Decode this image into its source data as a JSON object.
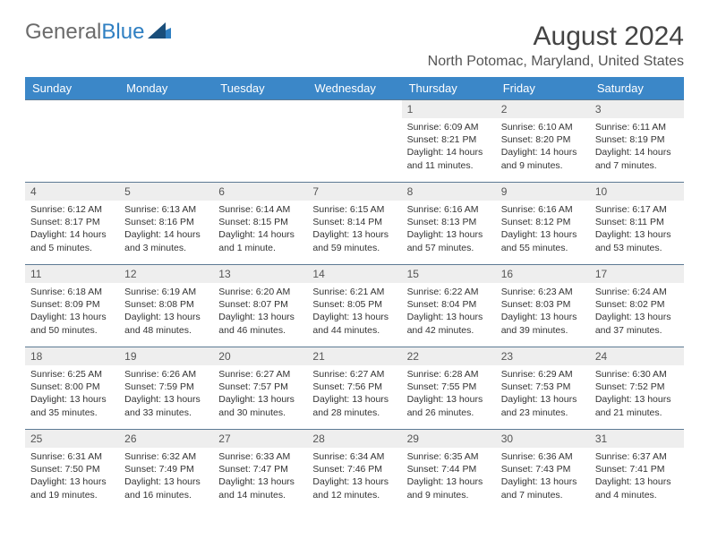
{
  "branding": {
    "word1": "General",
    "word2": "Blue"
  },
  "title": "August 2024",
  "location": "North Potomac, Maryland, United States",
  "colors": {
    "header_bg": "#3b87c8",
    "header_text": "#ffffff",
    "daynum_bg": "#eeeeee",
    "border": "#5d7a94",
    "brand_gray": "#6b6b6b",
    "brand_blue": "#2f7fc2"
  },
  "weekdays": [
    "Sunday",
    "Monday",
    "Tuesday",
    "Wednesday",
    "Thursday",
    "Friday",
    "Saturday"
  ],
  "weeks": [
    [
      {
        "day": "",
        "sunrise": "",
        "sunset": "",
        "daylight": ""
      },
      {
        "day": "",
        "sunrise": "",
        "sunset": "",
        "daylight": ""
      },
      {
        "day": "",
        "sunrise": "",
        "sunset": "",
        "daylight": ""
      },
      {
        "day": "",
        "sunrise": "",
        "sunset": "",
        "daylight": ""
      },
      {
        "day": "1",
        "sunrise": "Sunrise: 6:09 AM",
        "sunset": "Sunset: 8:21 PM",
        "daylight": "Daylight: 14 hours and 11 minutes."
      },
      {
        "day": "2",
        "sunrise": "Sunrise: 6:10 AM",
        "sunset": "Sunset: 8:20 PM",
        "daylight": "Daylight: 14 hours and 9 minutes."
      },
      {
        "day": "3",
        "sunrise": "Sunrise: 6:11 AM",
        "sunset": "Sunset: 8:19 PM",
        "daylight": "Daylight: 14 hours and 7 minutes."
      }
    ],
    [
      {
        "day": "4",
        "sunrise": "Sunrise: 6:12 AM",
        "sunset": "Sunset: 8:17 PM",
        "daylight": "Daylight: 14 hours and 5 minutes."
      },
      {
        "day": "5",
        "sunrise": "Sunrise: 6:13 AM",
        "sunset": "Sunset: 8:16 PM",
        "daylight": "Daylight: 14 hours and 3 minutes."
      },
      {
        "day": "6",
        "sunrise": "Sunrise: 6:14 AM",
        "sunset": "Sunset: 8:15 PM",
        "daylight": "Daylight: 14 hours and 1 minute."
      },
      {
        "day": "7",
        "sunrise": "Sunrise: 6:15 AM",
        "sunset": "Sunset: 8:14 PM",
        "daylight": "Daylight: 13 hours and 59 minutes."
      },
      {
        "day": "8",
        "sunrise": "Sunrise: 6:16 AM",
        "sunset": "Sunset: 8:13 PM",
        "daylight": "Daylight: 13 hours and 57 minutes."
      },
      {
        "day": "9",
        "sunrise": "Sunrise: 6:16 AM",
        "sunset": "Sunset: 8:12 PM",
        "daylight": "Daylight: 13 hours and 55 minutes."
      },
      {
        "day": "10",
        "sunrise": "Sunrise: 6:17 AM",
        "sunset": "Sunset: 8:11 PM",
        "daylight": "Daylight: 13 hours and 53 minutes."
      }
    ],
    [
      {
        "day": "11",
        "sunrise": "Sunrise: 6:18 AM",
        "sunset": "Sunset: 8:09 PM",
        "daylight": "Daylight: 13 hours and 50 minutes."
      },
      {
        "day": "12",
        "sunrise": "Sunrise: 6:19 AM",
        "sunset": "Sunset: 8:08 PM",
        "daylight": "Daylight: 13 hours and 48 minutes."
      },
      {
        "day": "13",
        "sunrise": "Sunrise: 6:20 AM",
        "sunset": "Sunset: 8:07 PM",
        "daylight": "Daylight: 13 hours and 46 minutes."
      },
      {
        "day": "14",
        "sunrise": "Sunrise: 6:21 AM",
        "sunset": "Sunset: 8:05 PM",
        "daylight": "Daylight: 13 hours and 44 minutes."
      },
      {
        "day": "15",
        "sunrise": "Sunrise: 6:22 AM",
        "sunset": "Sunset: 8:04 PM",
        "daylight": "Daylight: 13 hours and 42 minutes."
      },
      {
        "day": "16",
        "sunrise": "Sunrise: 6:23 AM",
        "sunset": "Sunset: 8:03 PM",
        "daylight": "Daylight: 13 hours and 39 minutes."
      },
      {
        "day": "17",
        "sunrise": "Sunrise: 6:24 AM",
        "sunset": "Sunset: 8:02 PM",
        "daylight": "Daylight: 13 hours and 37 minutes."
      }
    ],
    [
      {
        "day": "18",
        "sunrise": "Sunrise: 6:25 AM",
        "sunset": "Sunset: 8:00 PM",
        "daylight": "Daylight: 13 hours and 35 minutes."
      },
      {
        "day": "19",
        "sunrise": "Sunrise: 6:26 AM",
        "sunset": "Sunset: 7:59 PM",
        "daylight": "Daylight: 13 hours and 33 minutes."
      },
      {
        "day": "20",
        "sunrise": "Sunrise: 6:27 AM",
        "sunset": "Sunset: 7:57 PM",
        "daylight": "Daylight: 13 hours and 30 minutes."
      },
      {
        "day": "21",
        "sunrise": "Sunrise: 6:27 AM",
        "sunset": "Sunset: 7:56 PM",
        "daylight": "Daylight: 13 hours and 28 minutes."
      },
      {
        "day": "22",
        "sunrise": "Sunrise: 6:28 AM",
        "sunset": "Sunset: 7:55 PM",
        "daylight": "Daylight: 13 hours and 26 minutes."
      },
      {
        "day": "23",
        "sunrise": "Sunrise: 6:29 AM",
        "sunset": "Sunset: 7:53 PM",
        "daylight": "Daylight: 13 hours and 23 minutes."
      },
      {
        "day": "24",
        "sunrise": "Sunrise: 6:30 AM",
        "sunset": "Sunset: 7:52 PM",
        "daylight": "Daylight: 13 hours and 21 minutes."
      }
    ],
    [
      {
        "day": "25",
        "sunrise": "Sunrise: 6:31 AM",
        "sunset": "Sunset: 7:50 PM",
        "daylight": "Daylight: 13 hours and 19 minutes."
      },
      {
        "day": "26",
        "sunrise": "Sunrise: 6:32 AM",
        "sunset": "Sunset: 7:49 PM",
        "daylight": "Daylight: 13 hours and 16 minutes."
      },
      {
        "day": "27",
        "sunrise": "Sunrise: 6:33 AM",
        "sunset": "Sunset: 7:47 PM",
        "daylight": "Daylight: 13 hours and 14 minutes."
      },
      {
        "day": "28",
        "sunrise": "Sunrise: 6:34 AM",
        "sunset": "Sunset: 7:46 PM",
        "daylight": "Daylight: 13 hours and 12 minutes."
      },
      {
        "day": "29",
        "sunrise": "Sunrise: 6:35 AM",
        "sunset": "Sunset: 7:44 PM",
        "daylight": "Daylight: 13 hours and 9 minutes."
      },
      {
        "day": "30",
        "sunrise": "Sunrise: 6:36 AM",
        "sunset": "Sunset: 7:43 PM",
        "daylight": "Daylight: 13 hours and 7 minutes."
      },
      {
        "day": "31",
        "sunrise": "Sunrise: 6:37 AM",
        "sunset": "Sunset: 7:41 PM",
        "daylight": "Daylight: 13 hours and 4 minutes."
      }
    ]
  ]
}
